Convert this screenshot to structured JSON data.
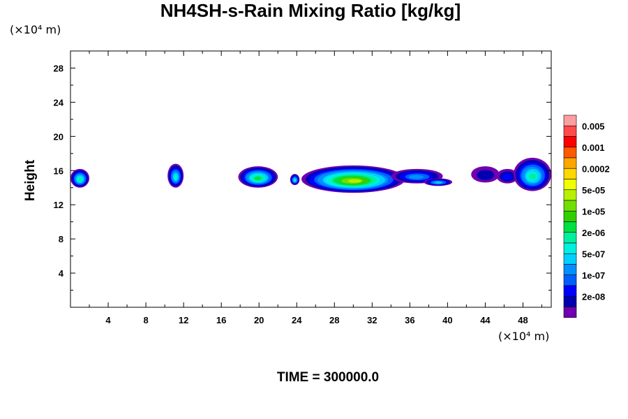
{
  "chart_data": {
    "type": "heatmap",
    "title": "NH4SH-s-Rain Mixing Ratio [kg/kg]",
    "ylabel": "Height",
    "xlabel": "",
    "x_unit": "(×10⁴ m)",
    "y_unit": "(×10⁴ m)",
    "footer": "TIME = 300000.0",
    "xlim": [
      0,
      51
    ],
    "ylim": [
      0,
      30
    ],
    "x_ticks": [
      4,
      8,
      12,
      16,
      20,
      24,
      28,
      32,
      36,
      40,
      44,
      48
    ],
    "y_ticks": [
      4,
      8,
      12,
      16,
      20,
      24,
      28
    ],
    "grid": false,
    "colorbar": {
      "labels": [
        "0.005",
        "0.001",
        "0.0002",
        "5e-05",
        "1e-05",
        "2e-06",
        "5e-07",
        "1e-07",
        "2e-08"
      ],
      "colors": [
        "#ff9ea0",
        "#ff4a4a",
        "#ff0000",
        "#ff5a00",
        "#ffa500",
        "#ffd800",
        "#f0ff00",
        "#b8f000",
        "#70e000",
        "#30d000",
        "#00e040",
        "#00f0a0",
        "#00f0e0",
        "#00d0ff",
        "#0090ff",
        "#0060ff",
        "#0000ff",
        "#0000b0",
        "#7000b0"
      ]
    },
    "cells": [
      {
        "x0": 0.0,
        "x1": 2.0,
        "y0": 14.0,
        "y1": 16.2,
        "peak": 8
      },
      {
        "x0": 10.3,
        "x1": 12.0,
        "y0": 14.0,
        "y1": 16.8,
        "peak": 7
      },
      {
        "x0": 17.8,
        "x1": 22.0,
        "y0": 14.0,
        "y1": 16.5,
        "peak": 9
      },
      {
        "x0": 23.3,
        "x1": 24.3,
        "y0": 14.3,
        "y1": 15.6,
        "peak": 7
      },
      {
        "x0": 24.5,
        "x1": 35.5,
        "y0": 13.4,
        "y1": 16.6,
        "peak": 12
      },
      {
        "x0": 34.0,
        "x1": 39.5,
        "y0": 14.5,
        "y1": 16.2,
        "peak": 5
      },
      {
        "x0": 37.5,
        "x1": 40.5,
        "y0": 14.2,
        "y1": 15.1,
        "peak": 6
      },
      {
        "x0": 42.5,
        "x1": 45.5,
        "y0": 14.6,
        "y1": 16.5,
        "peak": 2
      },
      {
        "x0": 45.2,
        "x1": 47.5,
        "y0": 14.5,
        "y1": 16.2,
        "peak": 3
      },
      {
        "x0": 47.0,
        "x1": 51.0,
        "y0": 13.6,
        "y1": 17.5,
        "peak": 8
      }
    ]
  }
}
